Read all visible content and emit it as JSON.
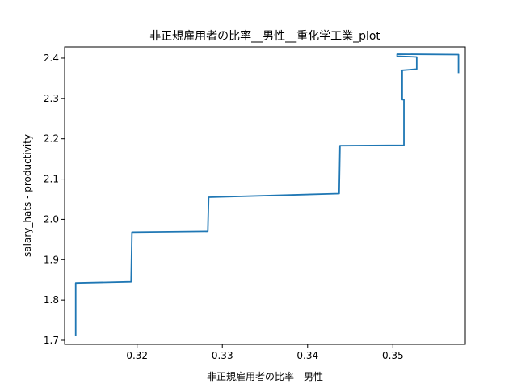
{
  "chart_data": {
    "type": "line",
    "title": "非正規雇用者の比率__男性__重化学工業_plot",
    "xlabel": "非正規雇用者の比率__男性",
    "ylabel": "salary_hats - productivity",
    "xlim": [
      0.3115,
      0.3585
    ],
    "ylim": [
      1.69,
      2.428
    ],
    "xticks": [
      {
        "value": 0.32,
        "label": "0.32"
      },
      {
        "value": 0.33,
        "label": "0.33"
      },
      {
        "value": 0.34,
        "label": "0.34"
      },
      {
        "value": 0.35,
        "label": "0.35"
      }
    ],
    "yticks": [
      {
        "value": 1.7,
        "label": "1.7"
      },
      {
        "value": 1.8,
        "label": "1.8"
      },
      {
        "value": 1.9,
        "label": "1.9"
      },
      {
        "value": 2.0,
        "label": "2.0"
      },
      {
        "value": 2.1,
        "label": "2.1"
      },
      {
        "value": 2.2,
        "label": "2.2"
      },
      {
        "value": 2.3,
        "label": "2.3"
      },
      {
        "value": 2.4,
        "label": "2.4"
      }
    ],
    "grid": false,
    "series": [
      {
        "color": "#1f77b4",
        "x": [
          0.3128,
          0.3128,
          0.3193,
          0.3194,
          0.3283,
          0.3284,
          0.3437,
          0.3438,
          0.3513,
          0.3513,
          0.3511,
          0.3511,
          0.351,
          0.351,
          0.3528,
          0.3528,
          0.3505,
          0.3505,
          0.3577,
          0.3577
        ],
        "y": [
          1.71,
          1.842,
          1.845,
          1.968,
          1.97,
          2.055,
          2.064,
          2.183,
          2.184,
          2.297,
          2.297,
          2.368,
          2.368,
          2.37,
          2.373,
          2.403,
          2.405,
          2.41,
          2.409,
          2.363
        ]
      }
    ]
  }
}
